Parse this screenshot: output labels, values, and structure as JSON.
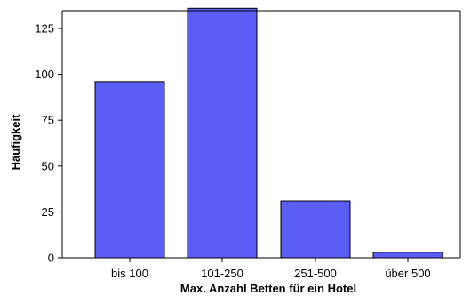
{
  "chart_data": {
    "type": "bar",
    "categories": [
      "bis 100",
      "101-250",
      "251-500",
      "über 500"
    ],
    "values": [
      96,
      136,
      31,
      3
    ],
    "xlabel": "Max. Anzahl Betten für ein Hotel",
    "ylabel": "Häufigkeit",
    "ylim": [
      0,
      135
    ],
    "yticks": [
      0,
      25,
      50,
      75,
      100,
      125
    ],
    "bar_color": "#5a5ef7",
    "bar_stroke": "#000000",
    "grid": false,
    "legend": "none"
  }
}
